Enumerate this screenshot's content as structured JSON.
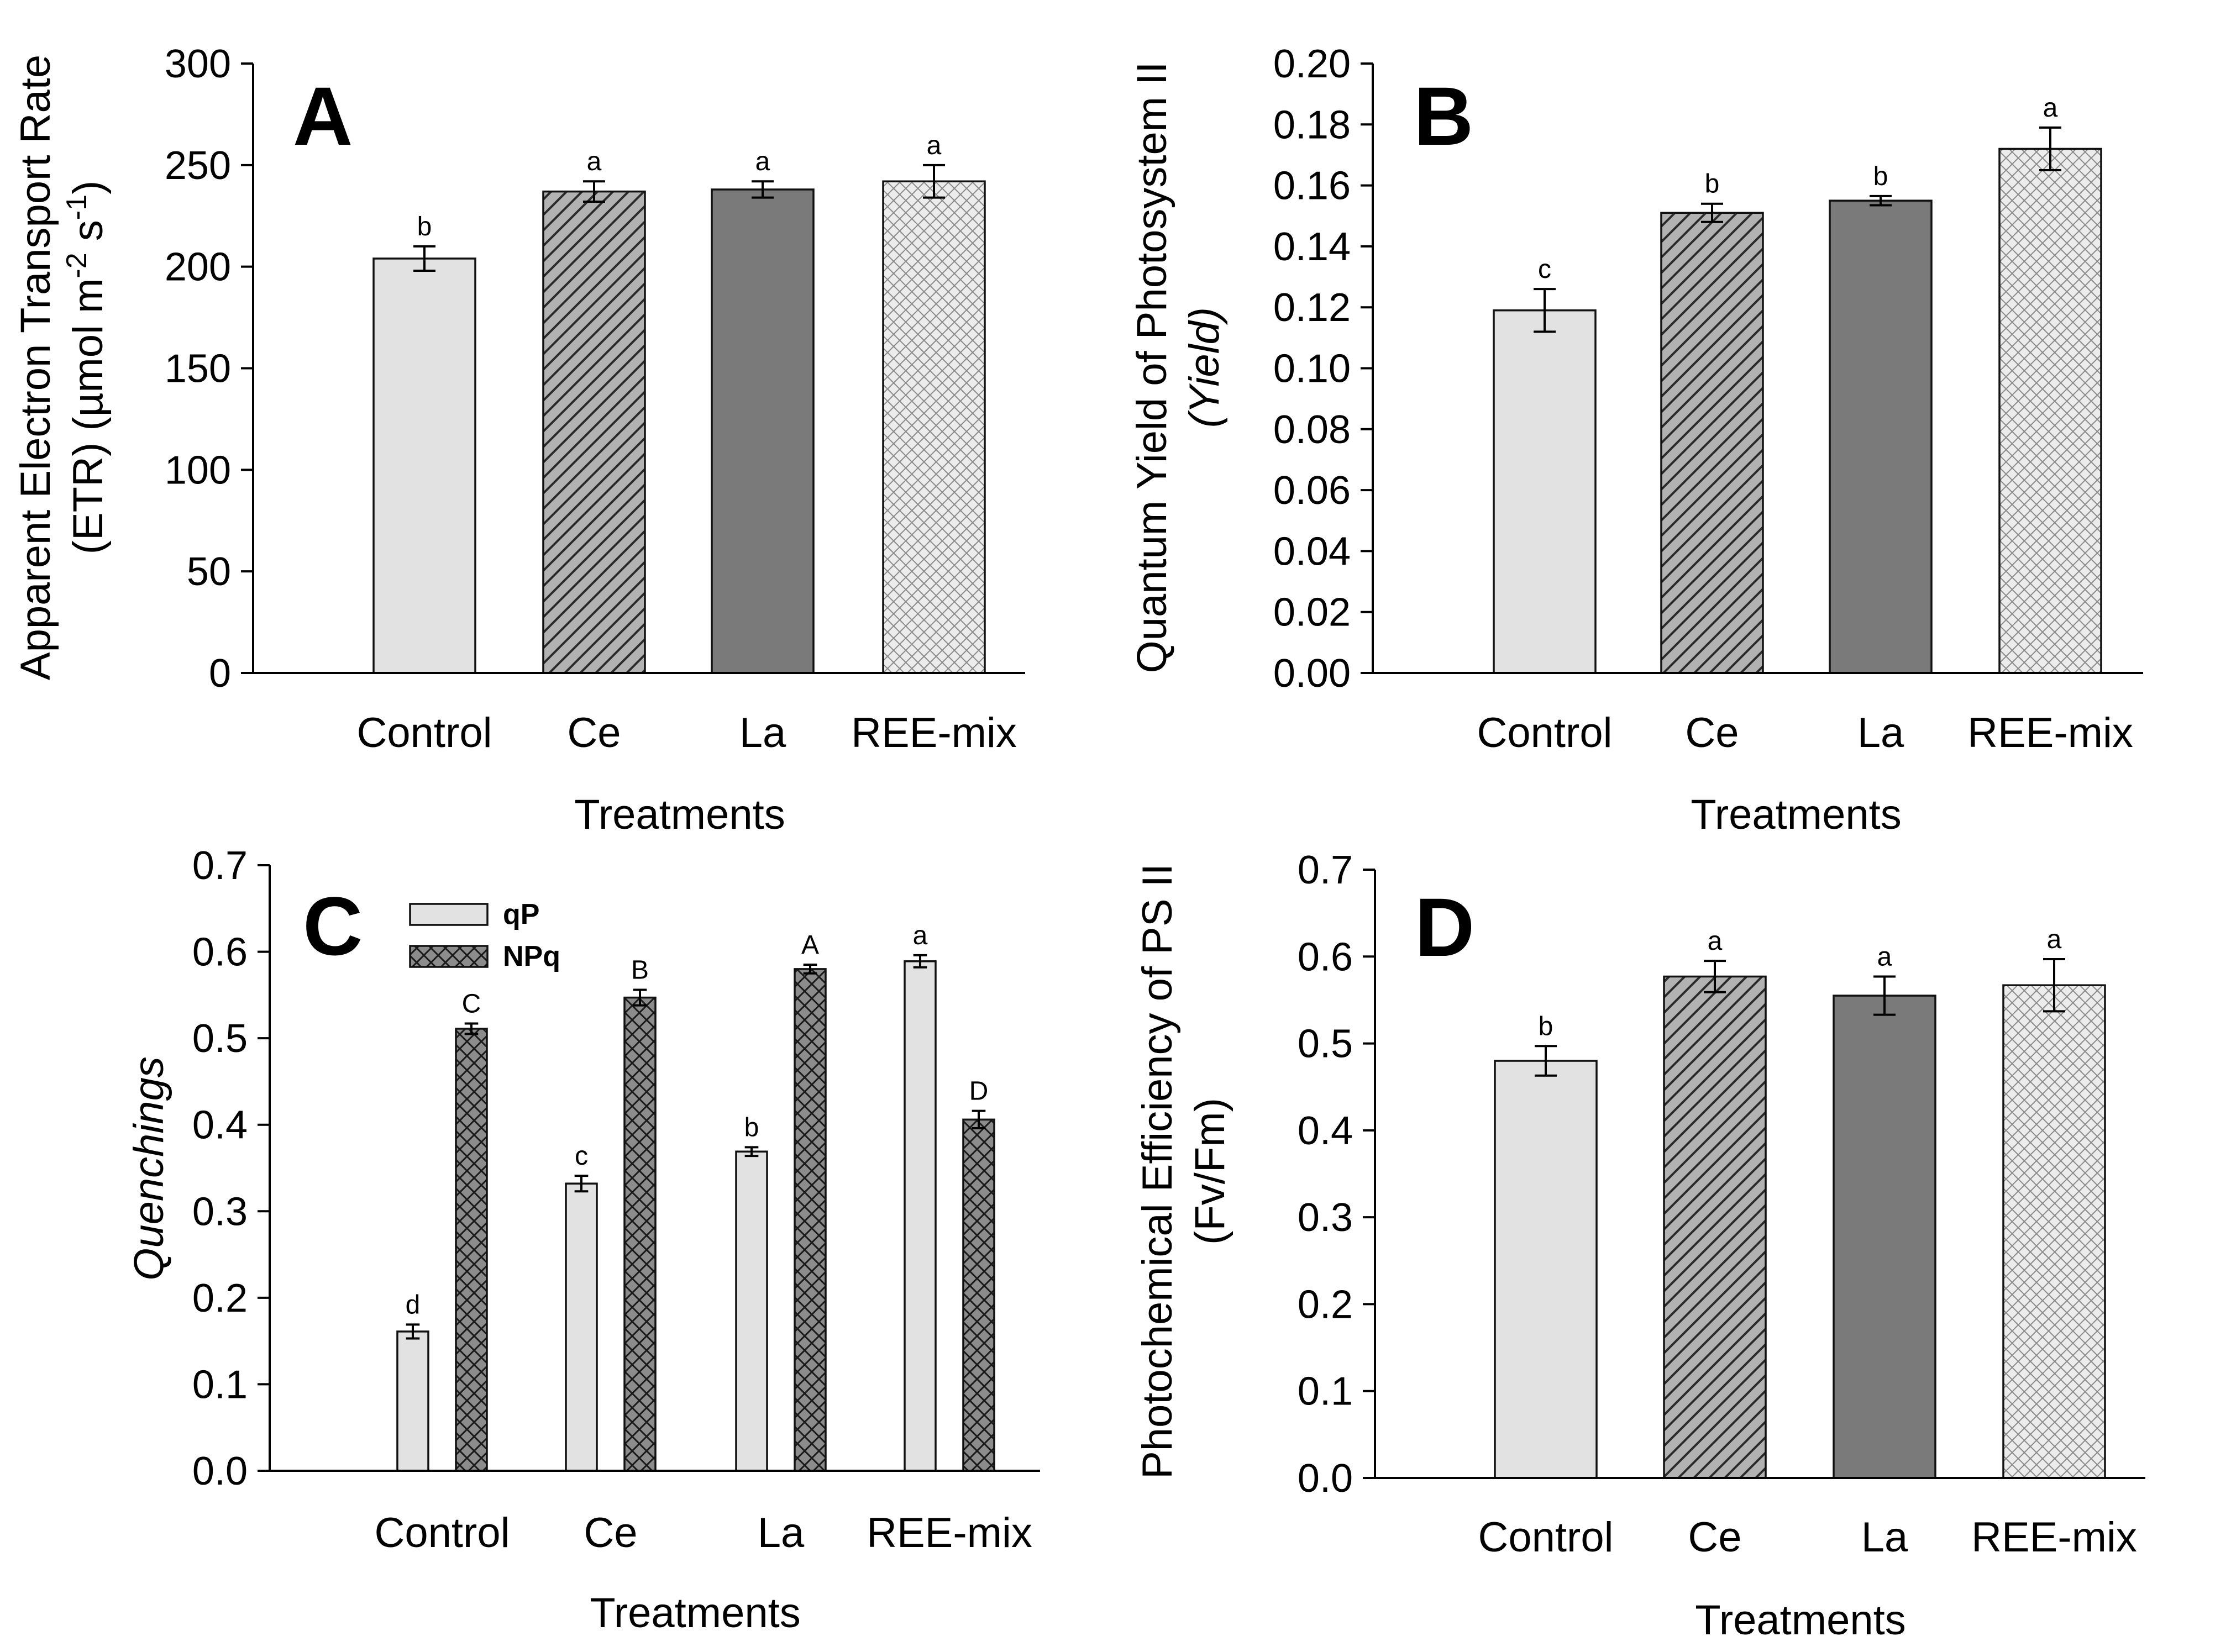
{
  "figure": {
    "xlabel_shared": "Treatments",
    "categories": [
      "Control",
      "Ce",
      "La",
      "REE-mix"
    ],
    "colors": {
      "control_fill": "#e2e2e2",
      "ce_fill": "#b2b2b2",
      "la_fill": "#7a7a7a",
      "reemix_fill": "#ececec",
      "qp_fill": "#e2e2e2",
      "npq_fill": "#8c8c8c",
      "ink": "#000000"
    },
    "patterns": [
      "solid",
      "diagonal-hatch",
      "solid",
      "crosshatch-fine"
    ]
  },
  "chart_data": [
    {
      "panel": "A",
      "type": "bar",
      "ylabel_line1": "Apparent Electron Transport Rate",
      "ylabel_line2_prefix": "(ETR) (µmol m",
      "ylabel_sup1": "-2",
      "ylabel_mid": " s",
      "ylabel_sup2": "-1",
      "ylabel_suffix": ")",
      "xlabel": "Treatments",
      "categories": [
        "Control",
        "Ce",
        "La",
        "REE-mix"
      ],
      "values": [
        204,
        237,
        238,
        242
      ],
      "errors": [
        6,
        5,
        4,
        8
      ],
      "letters": [
        "b",
        "a",
        "a",
        "a"
      ],
      "ylim": [
        0,
        300
      ],
      "yticks": [
        "0",
        "50",
        "100",
        "150",
        "200",
        "250",
        "300"
      ]
    },
    {
      "panel": "B",
      "type": "bar",
      "ylabel_line1": "Quantum Yield of Photosystem II",
      "ylabel_line2": "(Yield)",
      "xlabel": "Treatments",
      "categories": [
        "Control",
        "Ce",
        "La",
        "REE-mix"
      ],
      "values": [
        0.119,
        0.151,
        0.155,
        0.172
      ],
      "errors": [
        0.007,
        0.003,
        0.0015,
        0.007
      ],
      "letters": [
        "c",
        "b",
        "b",
        "a"
      ],
      "ylim": [
        0,
        0.2
      ],
      "yticks": [
        "0.00",
        "0.02",
        "0.04",
        "0.06",
        "0.08",
        "0.10",
        "0.12",
        "0.14",
        "0.16",
        "0.18",
        "0.20"
      ]
    },
    {
      "panel": "C",
      "type": "bar",
      "ylabel": "Quenchings",
      "xlabel": "Treatments",
      "categories": [
        "Control",
        "Ce",
        "La",
        "REE-mix"
      ],
      "series": [
        {
          "name": "qP",
          "values": [
            0.161,
            0.332,
            0.369,
            0.589
          ],
          "errors": [
            0.008,
            0.009,
            0.005,
            0.007
          ],
          "letters": [
            "d",
            "c",
            "b",
            "a"
          ]
        },
        {
          "name": "NPq",
          "values": [
            0.511,
            0.547,
            0.58,
            0.406
          ],
          "errors": [
            0.006,
            0.009,
            0.005,
            0.01
          ],
          "letters": [
            "C",
            "B",
            "A",
            "D"
          ]
        }
      ],
      "legend_position": "top-left",
      "ylim": [
        0,
        0.7
      ],
      "yticks": [
        "0.0",
        "0.1",
        "0.2",
        "0.3",
        "0.4",
        "0.5",
        "0.6",
        "0.7"
      ]
    },
    {
      "panel": "D",
      "type": "bar",
      "ylabel_line1": "Photochemical Efficiency of PS II",
      "ylabel_line2": "(Fv/Fm)",
      "xlabel": "Treatments",
      "categories": [
        "Control",
        "Ce",
        "La",
        "REE-mix"
      ],
      "values": [
        0.48,
        0.577,
        0.555,
        0.567
      ],
      "errors": [
        0.017,
        0.018,
        0.022,
        0.03
      ],
      "letters": [
        "b",
        "a",
        "a",
        "a"
      ],
      "ylim": [
        0,
        0.7
      ],
      "yticks": [
        "0.0",
        "0.1",
        "0.2",
        "0.3",
        "0.4",
        "0.5",
        "0.6",
        "0.7"
      ]
    }
  ]
}
